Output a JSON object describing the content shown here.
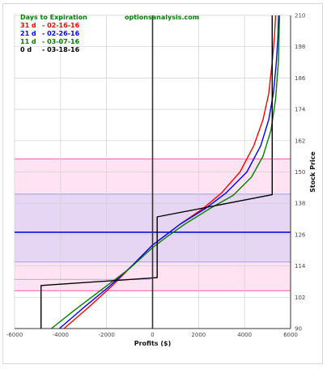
{
  "chart_data": {
    "type": "line",
    "header": {
      "legend_title": "Days to Expiration",
      "site": "optionsanalysis.com"
    },
    "xlabel": "Profits ($)",
    "ylabel": "Stock Price",
    "xlim": [
      -6000,
      6000
    ],
    "ylim": [
      90,
      210
    ],
    "x_ticks": [
      -6000,
      -4000,
      -2000,
      0,
      2000,
      4000,
      6000
    ],
    "x_tick_labels": [
      "-6000",
      "-4000",
      "-2000",
      "0",
      "2000",
      "4000",
      "6000"
    ],
    "y_ticks": [
      90,
      102,
      114,
      126,
      138,
      150,
      162,
      174,
      186,
      198,
      210
    ],
    "y_tick_labels": [
      "90",
      "102",
      "114",
      "126",
      "138",
      "150",
      "162",
      "174",
      "186",
      "198",
      "210"
    ],
    "grid": true,
    "legend_position": "top-left",
    "bands": [
      {
        "name": "outer-range",
        "y_from": 104.5,
        "y_to": 155.0,
        "color": "#ffe3f2",
        "edge": "#ff55aa"
      },
      {
        "name": "inner-range",
        "y_from": 115.5,
        "y_to": 141.5,
        "color": "#e6d6f4",
        "edge": "#9f9fe6"
      }
    ],
    "reference_lines": [
      {
        "name": "current-price",
        "y": 126.9,
        "color": "#0000cc"
      },
      {
        "name": "low-line",
        "y": 108.8,
        "color": "#9fc6e8"
      }
    ],
    "series": [
      {
        "name": "31 d",
        "date": "- 02-16-16",
        "color": "#ff0000",
        "points": [
          [
            -3850,
            90
          ],
          [
            -2800,
            98
          ],
          [
            -1800,
            106
          ],
          [
            -900,
            114
          ],
          [
            0,
            122
          ],
          [
            600,
            126
          ],
          [
            1200,
            130
          ],
          [
            2200,
            136
          ],
          [
            3000,
            142
          ],
          [
            3800,
            150
          ],
          [
            4400,
            160
          ],
          [
            4800,
            170
          ],
          [
            5050,
            180
          ],
          [
            5200,
            192
          ],
          [
            5300,
            202
          ],
          [
            5350,
            210
          ]
        ]
      },
      {
        "name": "21 d",
        "date": "- 02-26-16",
        "color": "#0000ff",
        "points": [
          [
            -4050,
            90
          ],
          [
            -3000,
            98
          ],
          [
            -1900,
            106
          ],
          [
            -900,
            114
          ],
          [
            0,
            122
          ],
          [
            600,
            126
          ],
          [
            1200,
            130
          ],
          [
            2300,
            136
          ],
          [
            3200,
            142
          ],
          [
            4100,
            150
          ],
          [
            4700,
            160
          ],
          [
            5050,
            170
          ],
          [
            5250,
            180
          ],
          [
            5380,
            192
          ],
          [
            5450,
            202
          ],
          [
            5480,
            210
          ]
        ]
      },
      {
        "name": "11 d",
        "date": "- 03-07-16",
        "color": "#008000",
        "points": [
          [
            -4400,
            90
          ],
          [
            -3400,
            97
          ],
          [
            -2200,
            105
          ],
          [
            -1000,
            113
          ],
          [
            0,
            121
          ],
          [
            600,
            125
          ],
          [
            1400,
            130
          ],
          [
            2500,
            136
          ],
          [
            3500,
            141
          ],
          [
            4300,
            148
          ],
          [
            4800,
            156
          ],
          [
            5150,
            166
          ],
          [
            5350,
            178
          ],
          [
            5470,
            192
          ],
          [
            5520,
            210
          ]
        ]
      },
      {
        "name": "0 d",
        "date": "- 03-18-16",
        "color": "#000000",
        "points": [
          [
            -4850,
            90
          ],
          [
            -4850,
            106.5
          ],
          [
            200,
            109.5
          ],
          [
            200,
            132.8
          ],
          [
            5200,
            141.3
          ],
          [
            5200,
            210
          ]
        ]
      }
    ]
  }
}
